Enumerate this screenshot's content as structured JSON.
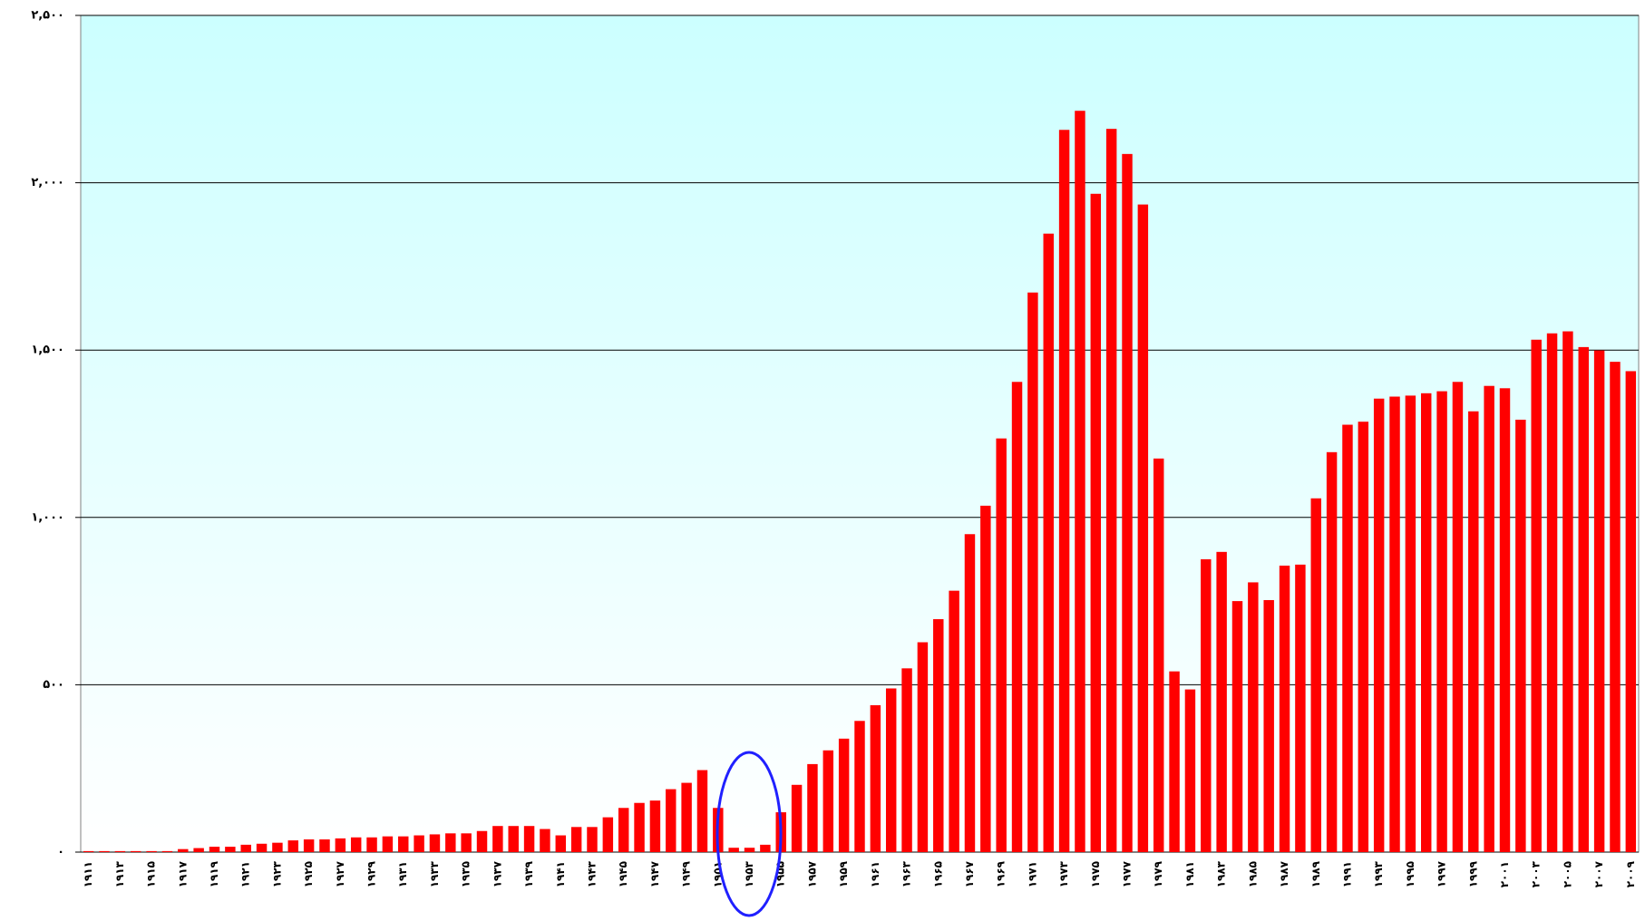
{
  "chart_data": {
    "type": "bar",
    "categories": [
      "۱۹۱۱",
      null,
      "۱۹۱۳",
      null,
      "۱۹۱۵",
      null,
      "۱۹۱۷",
      null,
      "۱۹۱۹",
      null,
      "۱۹۲۱",
      null,
      "۱۹۲۳",
      null,
      "۱۹۲۵",
      null,
      "۱۹۲۷",
      null,
      "۱۹۲۹",
      null,
      "۱۹۳۱",
      null,
      "۱۹۳۳",
      null,
      "۱۹۳۵",
      null,
      "۱۹۳۷",
      null,
      "۱۹۳۹",
      null,
      "۱۹۴۱",
      null,
      "۱۹۴۳",
      null,
      "۱۹۴۵",
      null,
      "۱۹۴۷",
      null,
      "۱۹۴۹",
      null,
      "۱۹۵۱",
      null,
      "۱۹۵۳",
      null,
      "۱۹۵۵",
      null,
      "۱۹۵۷",
      null,
      "۱۹۵۹",
      null,
      "۱۹۶۱",
      null,
      "۱۹۶۳",
      null,
      "۱۹۶۵",
      null,
      "۱۹۶۷",
      null,
      "۱۹۶۹",
      null,
      "۱۹۷۱",
      null,
      "۱۹۷۳",
      null,
      "۱۹۷۵",
      null,
      "۱۹۷۷",
      null,
      "۱۹۷۹",
      null,
      "۱۹۸۱",
      null,
      "۱۹۸۳",
      null,
      "۱۹۸۵",
      null,
      "۱۹۸۷",
      null,
      "۱۹۸۹",
      null,
      "۱۹۹۱",
      null,
      "۱۹۹۳",
      null,
      "۱۹۹۵",
      null,
      "۱۹۹۷",
      null,
      "۱۹۹۹",
      null,
      "۲۰۰۱",
      null,
      "۲۰۰۳",
      null,
      "۲۰۰۵",
      null,
      "۲۰۰۷",
      null,
      "۲۰۰۹"
    ],
    "values": [
      3,
      3,
      3,
      3,
      3,
      3,
      9,
      12,
      16,
      16,
      22,
      25,
      28,
      35,
      38,
      38,
      41,
      44,
      44,
      47,
      47,
      50,
      53,
      56,
      56,
      63,
      78,
      78,
      78,
      69,
      50,
      75,
      75,
      104,
      132,
      147,
      154,
      188,
      207,
      245,
      132,
      13,
      13,
      22,
      119,
      201,
      263,
      304,
      339,
      392,
      439,
      489,
      549,
      627,
      696,
      781,
      950,
      1035,
      1236,
      1405,
      1672,
      1848,
      2158,
      2215,
      1967,
      2161,
      2086,
      1935,
      1176,
      540,
      486,
      875,
      897,
      750,
      806,
      753,
      856,
      859,
      1057,
      1195,
      1277,
      1286,
      1355,
      1361,
      1364,
      1371,
      1377,
      1405,
      1317,
      1393,
      1386,
      1292,
      1531,
      1550,
      1556,
      1509,
      1499,
      1465,
      1437
    ],
    "color": "#ff0000",
    "ylim": [
      0,
      2500
    ],
    "yticks": [
      {
        "value": 0,
        "label": "۰"
      },
      {
        "value": 500,
        "label": "۵۰۰"
      },
      {
        "value": 1000,
        "label": "۱,۰۰۰"
      },
      {
        "value": 1500,
        "label": "۱,۵۰۰"
      },
      {
        "value": 2000,
        "label": "۲,۰۰۰"
      },
      {
        "value": 2500,
        "label": "۲,۵۰۰"
      }
    ],
    "grid": true
  }
}
